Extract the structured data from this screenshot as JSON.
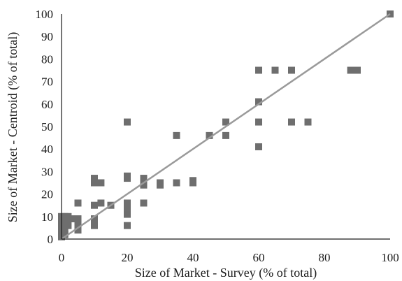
{
  "chart_data": {
    "type": "scatter",
    "title": "",
    "xlabel": "Size of Market - Survey (% of total)",
    "ylabel": "Size of Market - Centroid (% of total)",
    "xlim": [
      0,
      100
    ],
    "ylim": [
      0,
      100
    ],
    "x_ticks": [
      "0",
      "20",
      "40",
      "60",
      "80",
      "100"
    ],
    "y_ticks": [
      "0",
      "10",
      "20",
      "30",
      "40",
      "50",
      "60",
      "70",
      "80",
      "90",
      "100"
    ],
    "grid": false,
    "legend": "none",
    "marker": "square",
    "marker_color": "#6e6e6e",
    "line_color": "#9a9a9a",
    "reference_line": {
      "x": [
        0,
        100
      ],
      "y": [
        0,
        100
      ]
    },
    "points": [
      {
        "x": 0,
        "y": 10
      },
      {
        "x": 1,
        "y": 10
      },
      {
        "x": 2,
        "y": 10
      },
      {
        "x": 0,
        "y": 8
      },
      {
        "x": 1,
        "y": 7
      },
      {
        "x": 2,
        "y": 6
      },
      {
        "x": 0,
        "y": 5
      },
      {
        "x": 1,
        "y": 4
      },
      {
        "x": 0,
        "y": 3
      },
      {
        "x": 1,
        "y": 2
      },
      {
        "x": 0,
        "y": 1
      },
      {
        "x": 3,
        "y": 9
      },
      {
        "x": 5,
        "y": 16
      },
      {
        "x": 5,
        "y": 9
      },
      {
        "x": 5,
        "y": 7
      },
      {
        "x": 5,
        "y": 4
      },
      {
        "x": 10,
        "y": 27
      },
      {
        "x": 10,
        "y": 25
      },
      {
        "x": 11,
        "y": 25
      },
      {
        "x": 12,
        "y": 25
      },
      {
        "x": 10,
        "y": 15
      },
      {
        "x": 12,
        "y": 16
      },
      {
        "x": 15,
        "y": 15
      },
      {
        "x": 10,
        "y": 9
      },
      {
        "x": 10,
        "y": 8
      },
      {
        "x": 10,
        "y": 6
      },
      {
        "x": 20,
        "y": 52
      },
      {
        "x": 20,
        "y": 28
      },
      {
        "x": 20,
        "y": 27
      },
      {
        "x": 20,
        "y": 16
      },
      {
        "x": 20,
        "y": 14
      },
      {
        "x": 20,
        "y": 11
      },
      {
        "x": 20,
        "y": 6
      },
      {
        "x": 25,
        "y": 27
      },
      {
        "x": 25,
        "y": 25
      },
      {
        "x": 25,
        "y": 24
      },
      {
        "x": 25,
        "y": 16
      },
      {
        "x": 30,
        "y": 25
      },
      {
        "x": 30,
        "y": 24
      },
      {
        "x": 35,
        "y": 46
      },
      {
        "x": 35,
        "y": 25
      },
      {
        "x": 40,
        "y": 26
      },
      {
        "x": 40,
        "y": 25
      },
      {
        "x": 45,
        "y": 46
      },
      {
        "x": 50,
        "y": 52
      },
      {
        "x": 50,
        "y": 46
      },
      {
        "x": 60,
        "y": 75
      },
      {
        "x": 60,
        "y": 61
      },
      {
        "x": 60,
        "y": 52
      },
      {
        "x": 60,
        "y": 41
      },
      {
        "x": 65,
        "y": 75
      },
      {
        "x": 70,
        "y": 75
      },
      {
        "x": 70,
        "y": 52
      },
      {
        "x": 75,
        "y": 52
      },
      {
        "x": 88,
        "y": 75
      },
      {
        "x": 89,
        "y": 75
      },
      {
        "x": 90,
        "y": 75
      },
      {
        "x": 100,
        "y": 100
      }
    ]
  }
}
